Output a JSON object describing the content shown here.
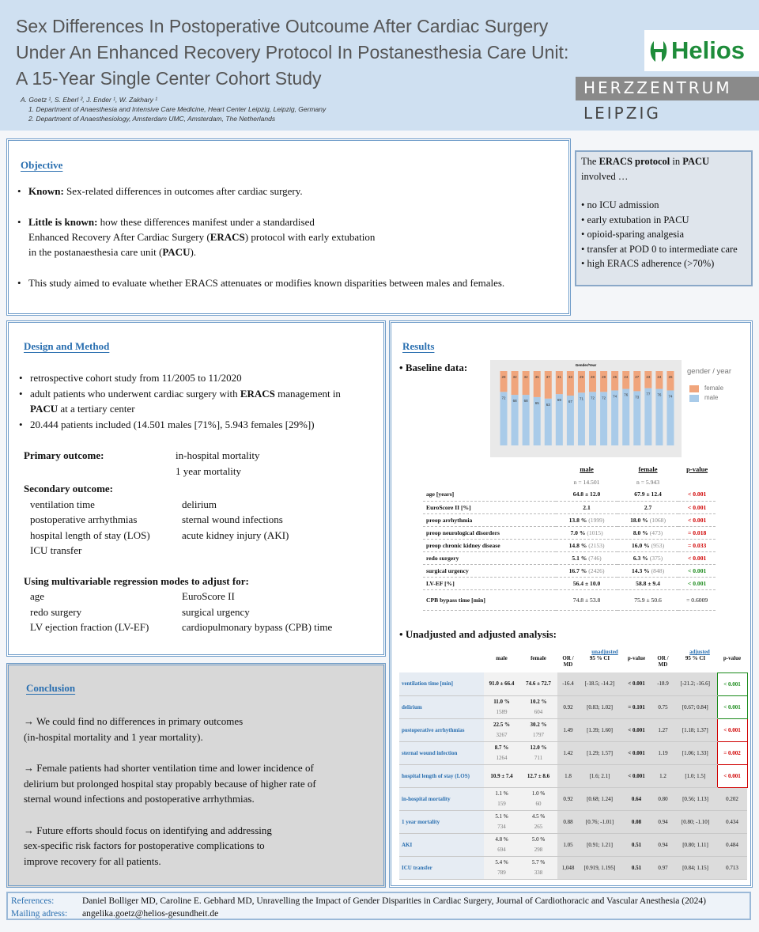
{
  "header": {
    "title": [
      "Sex Differences In Postoperative Outcoume After Cardiac Surgery",
      "Under An Enhanced Recovery Protocol In Postanesthesia Care Unit:",
      "A 15-Year Single Center Cohort Study"
    ],
    "authors": "A. Goetz ¹, S. Eberl ², J. Ender ¹, W. Zakhary ¹",
    "affiliations": [
      "1.  Department of Anaesthesia and Intensive Care Medicine, Heart Center Leipzig, Leipzig, Germany",
      "2.  Department of Anaesthesiology, Amsterdam UMC, Amsterdam, The Netherlands"
    ]
  },
  "logo": {
    "brand": "Helios",
    "unit": "HERZZENTRUM",
    "city": "LEIPZIG"
  },
  "objective": {
    "heading": "Objective",
    "items": [
      [
        [
          {
            "bold": "Known:"
          },
          {
            "text": " Sex-related differences in outcomes after cardiac surgery."
          }
        ]
      ],
      [
        [
          {
            "bold": "Little is known:"
          },
          {
            "text": " how these differences manifest under a standardised"
          }
        ],
        [
          {
            "text": "Enhanced Recovery After Cardiac Surgery ("
          },
          {
            "bold": "ERACS"
          },
          {
            "text": ") protocol with early extubation"
          }
        ],
        [
          {
            "text": "in the postanaesthesia care unit ("
          },
          {
            "bold": "PACU"
          },
          {
            "text": ")."
          }
        ]
      ],
      [
        [
          {
            "text": "This study aimed to evaluate whether ERACS attenuates or modifies known disparities between males and females."
          }
        ]
      ]
    ]
  },
  "protocol": {
    "intro": [
      {
        "text": "The "
      },
      {
        "bold": "ERACS protocol"
      },
      {
        "text": " in "
      },
      {
        "bold": "PACU"
      },
      {
        "text": " involved …"
      }
    ],
    "items": [
      "no ICU admission",
      "early extubation in PACU",
      "opioid-sparing analgesia",
      "transfer at POD 0 to intermediate care",
      "high ERACS adherence (>70%)"
    ]
  },
  "design": {
    "heading": "Design and Method",
    "items": [
      [
        [
          {
            "text": "retrospective cohort study from 11/2005 to 11/2020"
          }
        ]
      ],
      [
        [
          {
            "text": "adult patients who underwent cardiac surgery with "
          },
          {
            "bold": "ERACS"
          },
          {
            "text": " management in"
          }
        ],
        [
          {
            "bold": "PACU"
          },
          {
            "text": " at a tertiary center"
          }
        ]
      ],
      [
        [
          {
            "text": "20.444 patients included (14.501 males [71%], 5.943 females [29%])"
          }
        ]
      ]
    ],
    "primary_label": "Primary outcome:",
    "primary": [
      "in-hospital mortality",
      "1 year mortality"
    ],
    "secondary_label": "Secondary outcome:",
    "secondary": [
      [
        "ventilation time",
        "delirium"
      ],
      [
        "postoperative arrhythmias",
        "sternal wound infections"
      ],
      [
        "hospital length of stay (LOS)",
        "acute kidney injury (AKI)"
      ],
      [
        "ICU transfer",
        null
      ]
    ],
    "adjust_label": "Using multivariable regression modes to adjust for:",
    "adjust": [
      [
        "age",
        "EuroScore II"
      ],
      [
        "redo surgery",
        "surgical urgency"
      ],
      [
        "LV ejection fraction (LV-EF)",
        "cardiopulmonary bypass (CPB) time"
      ]
    ]
  },
  "conclusion": {
    "heading": "Conclusion",
    "paragraphs": [
      [
        "→ We could find no differences in primary outcomes",
        "(in-hospital mortality and 1 year mortality)."
      ],
      [
        "→ Female patients had shorter ventilation time and lower incidence of",
        "delirium but prolonged hospital stay propably because of higher rate of",
        "sternal wound infections and postoperative arrhythmias."
      ],
      [
        "→ Future efforts should focus on identifying and addressing",
        "sex-specific risk factors for postoperative complications to",
        "improve recovery for all patients."
      ]
    ]
  },
  "results": {
    "heading": "Results",
    "baseline_label": "Baseline data:",
    "chart_data": {
      "type": "bar",
      "stacked": true,
      "title": "Gender/Year",
      "legend_title": "gender / year",
      "ylim": [
        0,
        100
      ],
      "series": [
        {
          "name": "female",
          "color": "#f0a57c",
          "values": [
            28,
            32,
            32,
            35,
            37,
            31,
            33,
            29,
            28,
            28,
            26,
            24,
            27,
            23,
            24,
            26
          ]
        },
        {
          "name": "male",
          "color": "#a9cbe9",
          "values": [
            72,
            68,
            68,
            65,
            63,
            69,
            67,
            71,
            72,
            72,
            74,
            76,
            73,
            77,
            76,
            74
          ]
        }
      ]
    },
    "baseline": {
      "columns": [
        "male",
        "female",
        "p-value"
      ],
      "n": [
        "n = 14.501",
        "n = 5.943"
      ],
      "rows": [
        {
          "label": "age [years]",
          "male": "64.8 ± 12.0",
          "male_n": null,
          "female": "67.9 ± 12.4",
          "female_n": null,
          "p": "< 0.001",
          "p_color": "#d00000"
        },
        {
          "label": "EuroScore II [%]",
          "male": "2.1",
          "male_n": null,
          "female": "2.7",
          "female_n": null,
          "p": "< 0.001",
          "p_color": "#d00000"
        },
        {
          "label": "preop arrhythmia",
          "male": "13.8 %",
          "male_n": "(1999)",
          "female": "18.0 %",
          "female_n": "(1068)",
          "p": "< 0.001",
          "p_color": "#d00000"
        },
        {
          "label": "preop neurological disorders",
          "male": "7.0 %",
          "male_n": "(1015)",
          "female": "8.0 %",
          "female_n": "(473)",
          "p": "= 0.018",
          "p_color": "#d00000"
        },
        {
          "label": "preop chronic kidney disease",
          "male": "14.8 %",
          "male_n": "(2153)",
          "female": "16.0 %",
          "female_n": "(953)",
          "p": "= 0.033",
          "p_color": "#d00000"
        },
        {
          "label": "redo surgery",
          "male": "5.1 %",
          "male_n": "(746)",
          "female": "6.3 %",
          "female_n": "(375)",
          "p": "< 0.001",
          "p_color": "#d00000"
        },
        {
          "label": "surgical urgency",
          "male": "16.7 %",
          "male_n": "(2426)",
          "female": "14.3 %",
          "female_n": "(848)",
          "p": "< 0.001",
          "p_color": "#1a8a1a"
        },
        {
          "label": "LV-EF [%]",
          "male": "56.4 ± 10.0",
          "male_n": null,
          "female": "58.8 ± 9.4",
          "female_n": null,
          "p": "< 0.001",
          "p_color": "#1a8a1a"
        },
        {
          "label": "CPB bypass time [min]",
          "male": "74.8 ± 53.8",
          "male_n": null,
          "female": "75.9 ± 50.6",
          "female_n": null,
          "p": "= 0.6009",
          "p_color": "#111111"
        }
      ]
    },
    "analysis_label": "Unadjusted and adjusted analysis:",
    "analysis": {
      "groups": [
        "unadjusted",
        "adjusted"
      ],
      "columns": [
        "male",
        "female",
        "OR / MD",
        "95 % CI",
        "p-value",
        "OR / MD",
        "95 % CI",
        "p-value"
      ],
      "rows": [
        {
          "label": "ventilation time [min]",
          "male": "91.0 ± 66.4",
          "male_n": null,
          "female": "74.6 ± 72.7",
          "female_n": null,
          "or1": "-16.4",
          "ci1": "[-18.5; -14.2]",
          "p1": "< 0.001",
          "or2": "-18.9",
          "ci2": "[-21.2; -16.6]",
          "p2": "< 0.001",
          "p2_color": "#1a8a1a"
        },
        {
          "label": "delirium",
          "male": "11.0 %",
          "male_n": "1589",
          "female": "10.2 %",
          "female_n": "604",
          "or1": "0.92",
          "ci1": "[0.83; 1.02]",
          "p1": "= 0.101",
          "or2": "0.75",
          "ci2": "[0.67; 0.84]",
          "p2": "< 0.001",
          "p2_color": "#1a8a1a"
        },
        {
          "label": "postoperative arrhythmias",
          "male": "22.5 %",
          "male_n": "3267",
          "female": "30.2 %",
          "female_n": "1797",
          "or1": "1.49",
          "ci1": "[1.39; 1.60]",
          "p1": "< 0.001",
          "or2": "1.27",
          "ci2": "[1.18; 1.37]",
          "p2": "< 0.001",
          "p2_color": "#d00000"
        },
        {
          "label": "sternal wound infection",
          "male": "8.7 %",
          "male_n": "1264",
          "female": "12.0 %",
          "female_n": "711",
          "or1": "1.42",
          "ci1": "[1.29; 1.57]",
          "p1": "< 0.001",
          "or2": "1.19",
          "ci2": "[1.06; 1.33]",
          "p2": "= 0.002",
          "p2_color": "#d00000"
        },
        {
          "label": "hospital length of stay (LOS)",
          "male": "10.9 ± 7.4",
          "male_n": null,
          "female": "12.7 ± 8.6",
          "female_n": null,
          "or1": "1.8",
          "ci1": "[1.6; 2.1]",
          "p1": "< 0.001",
          "or2": "1.2",
          "ci2": "[1.0; 1.5]",
          "p2": "< 0.001",
          "p2_color": "#d00000"
        },
        {
          "label": "in-hospital mortality",
          "male": "1.1 %",
          "male_n": "159",
          "female": "1.0 %",
          "female_n": "60",
          "or1": "0.92",
          "ci1": "[0.68; 1.24]",
          "p1": "0.64",
          "or2": "0.80",
          "ci2": "[0.56; 1.13]",
          "p2": "0.202",
          "p2_color": null
        },
        {
          "label": "1 year mortality",
          "male": "5.1 %",
          "male_n": "734",
          "female": "4.5 %",
          "female_n": "265",
          "or1": "0.88",
          "ci1": "[0.76; -1.01]",
          "p1": "0.08",
          "or2": "0.94",
          "ci2": "[0.80; -1.10]",
          "p2": "0.434",
          "p2_color": null
        },
        {
          "label": "AKI",
          "male": "4.8 %",
          "male_n": "694",
          "female": "5.0 %",
          "female_n": "298",
          "or1": "1.05",
          "ci1": "[0.91; 1.21]",
          "p1": "0.51",
          "or2": "0.94",
          "ci2": "[0.80; 1.11]",
          "p2": "0.484",
          "p2_color": null
        },
        {
          "label": "ICU transfer",
          "male": "5.4 %",
          "male_n": "789",
          "female": "5.7 %",
          "female_n": "338",
          "or1": "1,048",
          "ci1": "[0.919, 1.195]",
          "p1": "0.51",
          "or2": "0.97",
          "ci2": "[0.84; 1.15]",
          "p2": "0.713",
          "p2_color": null
        }
      ]
    }
  },
  "footer": {
    "references_label": "References:",
    "references": "Daniel Bolliger MD, Caroline E. Gebhard MD, Unravelling the Impact of Gender Disparities in Cardiac Surgery, Journal of Cardiothoracic and Vascular Anesthesia (2024)",
    "mail_label": "Mailing adress:",
    "mail": "angelika.goetz@helios-gesundheit.de"
  }
}
